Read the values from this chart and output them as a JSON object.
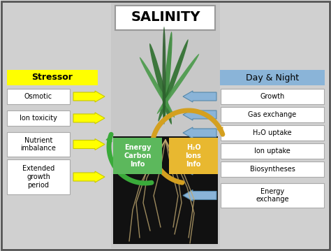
{
  "title": "SALINITY",
  "bg_color": "#e0e0e0",
  "border_color": "#555555",
  "left_header": "Stressor",
  "left_header_bg": "#ffff00",
  "left_items": [
    "Osmotic",
    "Ion toxicity",
    "Nutrient\nimbalance",
    "Extended\ngrowth\nperiod"
  ],
  "right_header": "Day & Night",
  "right_header_bg": "#8ab4d8",
  "right_items": [
    "Growth",
    "Gas exchange",
    "H₂O uptake",
    "Ion uptake",
    "Biosyntheses",
    "Energy\nexchange"
  ],
  "left_arrow_color": "#ffff00",
  "left_arrow_edge": "#c8c800",
  "right_arrow_color": "#8ab4d8",
  "right_arrow_edge": "#5588aa",
  "center_left_label": "Energy\nCarbon\nInfo",
  "center_left_bg": "#5cb85c",
  "center_right_label": "H₂O\nIons\nInfo",
  "center_right_bg": "#e8b830",
  "title_box_bg": "#ffffff",
  "soil_color": "#111111",
  "center_panel_bg": "#d0d0d0",
  "side_panel_bg": "#d0d0d0"
}
